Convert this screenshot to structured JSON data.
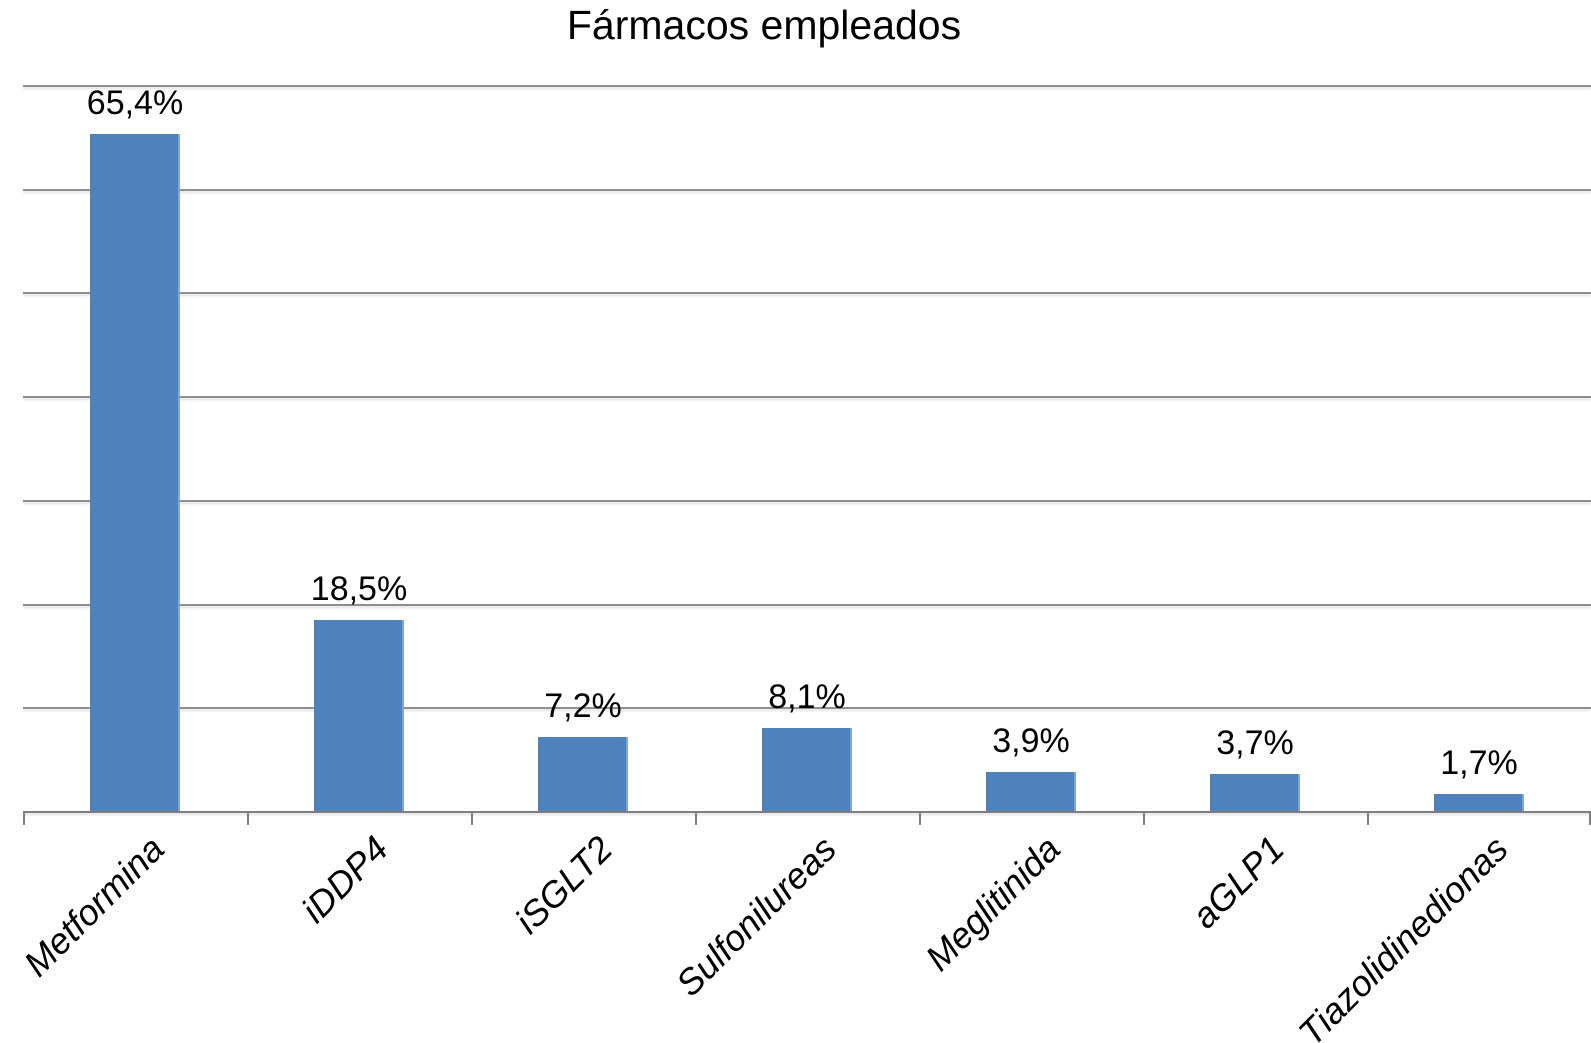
{
  "title": "Fármacos empleados",
  "chart_data": {
    "type": "bar",
    "title": "Fármacos empleados",
    "categories": [
      "Metformina",
      "iDDP4",
      "iSGLT2",
      "Sulfonilureas",
      "Meglitinida",
      "aGLP1",
      "Tiazolidinedionas"
    ],
    "values": [
      65.4,
      18.5,
      7.2,
      8.1,
      3.9,
      3.7,
      1.7
    ],
    "data_labels": [
      "65,4%",
      "18,5%",
      "7,2%",
      "8,1%",
      "3,9%",
      "3,7%",
      "1,7%"
    ],
    "xlabel": "",
    "ylabel": "",
    "ylim": [
      0,
      70
    ],
    "gridline_step": 10,
    "grid": true,
    "legend_position": "none",
    "y_tick_labels_visible": false,
    "category_label_style": "italic, rotated 45deg",
    "colors": {
      "bar": "#4f81bd",
      "gridline": "#8f8f8f",
      "axis": "#7f7f7f",
      "text": "#000000",
      "background": "#ffffff"
    }
  }
}
